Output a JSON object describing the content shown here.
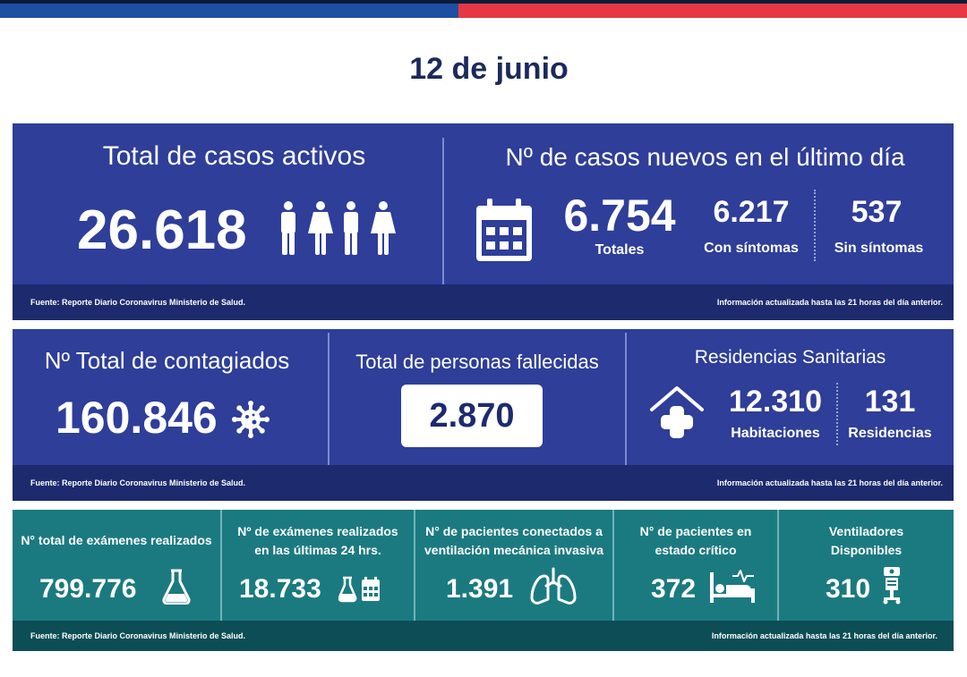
{
  "date": "12 de junio",
  "footer": {
    "source": "Fuente: Reporte Diario Coronavirus Ministerio de Salud.",
    "info": "Información actualizada hasta las 21 horas  del día anterior."
  },
  "active_cases": {
    "title": "Total de casos activos",
    "value": "26.618",
    "icon": "people-icon"
  },
  "new_cases": {
    "title": "Nº de casos nuevos en el último día",
    "total_value": "6.754",
    "total_label": "Totales",
    "symptoms_value": "6.217",
    "symptoms_label": "Con síntomas",
    "nosymptoms_value": "537",
    "nosymptoms_label": "Sin síntomas",
    "icon": "calendar-icon"
  },
  "total_infected": {
    "title": "Nº Total de contagiados",
    "value": "160.846",
    "icon": "virus-icon"
  },
  "deaths": {
    "title": "Total de personas fallecidas",
    "value": "2.870"
  },
  "residences": {
    "title": "Residencias Sanitarias",
    "rooms_value": "12.310",
    "rooms_label": "Habitaciones",
    "res_value": "131",
    "res_label": "Residencias",
    "icon": "house-cross-icon"
  },
  "exams_total": {
    "title": "N° total de exámenes realizados",
    "value": "799.776",
    "icon": "flask-icon"
  },
  "exams_24h": {
    "title_1": "Nº de exámenes realizados",
    "title_2": "en las últimas 24 hrs.",
    "value": "18.733",
    "icon": "flask-calendar-icon"
  },
  "ventilated": {
    "title_1": "N° de pacientes conectados a",
    "title_2": "ventilación mecánica invasiva",
    "value": "1.391",
    "icon": "lungs-icon"
  },
  "critical": {
    "title_1": "N° de pacientes  en",
    "title_2": "estado crítico",
    "value": "372",
    "icon": "hospital-bed-icon"
  },
  "ventilators": {
    "title_1": "Ventiladores",
    "title_2": "Disponibles",
    "value": "310",
    "icon": "ventilator-icon"
  }
}
